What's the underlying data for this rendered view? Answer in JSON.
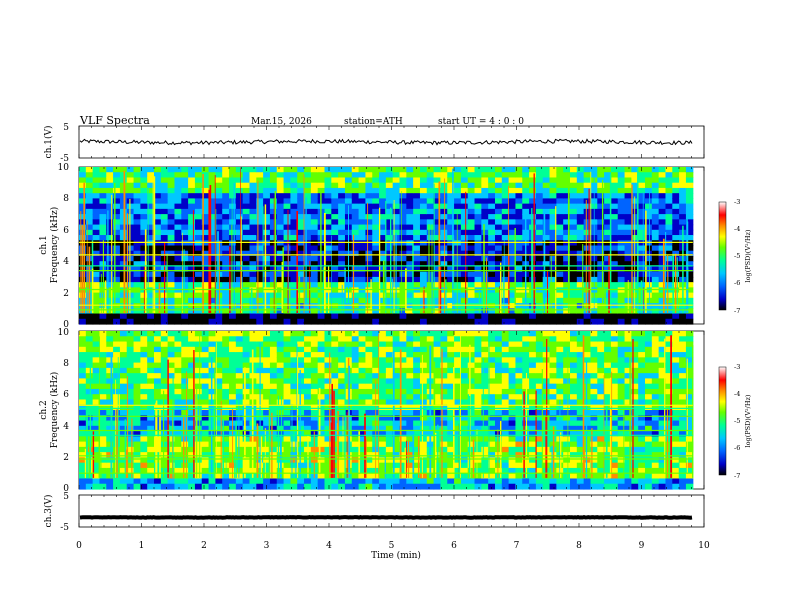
{
  "header": {
    "title": "VLF  Spectra",
    "date": "Mar.15, 2026",
    "station": "station=ATH",
    "start": "start  UT  =  4  : 0  : 0"
  },
  "chart_data": [
    {
      "type": "line",
      "name": "ch1-waveform",
      "ylabel": "ch.1(V)",
      "ylim": [
        -5,
        5
      ],
      "yticks": [
        "5",
        "-5"
      ],
      "trace_level_v": 0,
      "trace_noise_v": 1.2
    },
    {
      "type": "heatmap",
      "name": "ch1-spectrogram",
      "ylabel": [
        "ch.1",
        "Frequency  (kHz)"
      ],
      "ylim": [
        0,
        10
      ],
      "yticks": [
        "0",
        "2",
        "4",
        "6",
        "8",
        "10"
      ],
      "colorbar": {
        "label": "log(PSD)(V²/Hz)",
        "ticks": [
          "-3",
          "-4",
          "-5",
          "-6",
          "-7"
        ],
        "range": [
          -7,
          -3
        ]
      },
      "bands": [
        {
          "f_lo": 0.0,
          "f_hi": 0.7,
          "level": -7
        },
        {
          "f_lo": 0.7,
          "f_hi": 1.8,
          "level": -5.2
        },
        {
          "f_lo": 1.8,
          "f_hi": 2.6,
          "level": -5.0
        },
        {
          "f_lo": 2.6,
          "f_hi": 5.5,
          "level": -6.4
        },
        {
          "f_lo": 5.5,
          "f_hi": 8.5,
          "level": -5.9
        },
        {
          "f_lo": 8.5,
          "f_hi": 10.0,
          "level": -5.0
        }
      ],
      "lines_khz": [
        2.2,
        3.4,
        3.7,
        4.4,
        5.2,
        0.9,
        1.2
      ]
    },
    {
      "type": "heatmap",
      "name": "ch2-spectrogram",
      "ylabel": [
        "ch.2",
        "Frequency  (kHz)"
      ],
      "ylim": [
        0,
        10
      ],
      "yticks": [
        "0",
        "2",
        "4",
        "6",
        "8",
        "10"
      ],
      "colorbar": {
        "label": "log(PSD)(V²/Hz)",
        "ticks": [
          "-3",
          "-4",
          "-5",
          "-6",
          "-7"
        ],
        "range": [
          -7,
          -3
        ]
      },
      "bands": [
        {
          "f_lo": 0.0,
          "f_hi": 0.6,
          "level": -5.6
        },
        {
          "f_lo": 0.6,
          "f_hi": 3.5,
          "level": -4.8
        },
        {
          "f_lo": 3.5,
          "f_hi": 5.0,
          "level": -5.6
        },
        {
          "f_lo": 5.0,
          "f_hi": 10.0,
          "level": -4.9
        }
      ],
      "lines_khz": [
        1.0,
        1.9,
        2.1,
        3.4,
        3.7,
        4.6,
        5.1,
        5.3
      ]
    },
    {
      "type": "line",
      "name": "ch3-waveform",
      "ylabel": "ch.3(V)",
      "ylim": [
        -5,
        5
      ],
      "yticks": [
        "5",
        "-5"
      ],
      "trace_level_v": -2.0,
      "trace_noise_v": 0.15
    }
  ],
  "xaxis": {
    "label": "Time  (min)",
    "min": 0,
    "max": 10,
    "ticks": [
      "0",
      "1",
      "2",
      "3",
      "4",
      "5",
      "6",
      "7",
      "8",
      "9",
      "10"
    ],
    "data_end": 9.82
  },
  "colors": {
    "colormap": [
      "#000000",
      "#0000c8",
      "#0064ff",
      "#00c8ff",
      "#00ff96",
      "#64ff00",
      "#ffff00",
      "#ff8c00",
      "#ff0000",
      "#ffffff"
    ]
  }
}
